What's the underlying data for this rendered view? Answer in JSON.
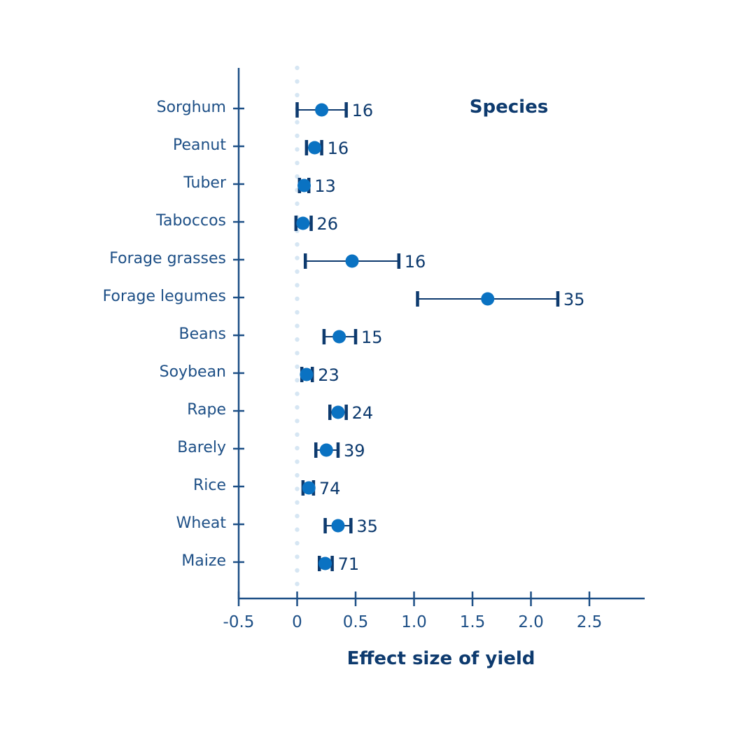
{
  "chart_data": {
    "type": "forest",
    "title": "Species",
    "xlabel": "Effect size of yield",
    "ylabel": "",
    "xlim": [
      -0.5,
      2.97
    ],
    "xticks": [
      -0.5,
      0,
      0.5,
      1.0,
      1.5,
      2.0,
      2.5
    ],
    "xtick_labels": [
      "-0.5",
      "0",
      "0.5",
      "1.0",
      "1.5",
      "2.0",
      "2.5"
    ],
    "reference_line": 0,
    "grid": false,
    "colors": {
      "point": "#0a72c2",
      "whisker": "#0d3a6e",
      "axis": "#1d4f86",
      "reference": "#d6e6f3"
    },
    "rows": [
      {
        "label": "Sorghum",
        "mean": 0.21,
        "low": 0.0,
        "high": 0.42,
        "n": "16"
      },
      {
        "label": "Peanut",
        "mean": 0.15,
        "low": 0.08,
        "high": 0.21,
        "n": "16"
      },
      {
        "label": "Tuber",
        "mean": 0.06,
        "low": 0.02,
        "high": 0.1,
        "n": "13"
      },
      {
        "label": "Taboccos",
        "mean": 0.05,
        "low": -0.01,
        "high": 0.12,
        "n": "26"
      },
      {
        "label": "Forage grasses",
        "mean": 0.47,
        "low": 0.07,
        "high": 0.87,
        "n": "16"
      },
      {
        "label": "Forage legumes",
        "mean": 1.63,
        "low": 1.03,
        "high": 2.23,
        "n": "35"
      },
      {
        "label": "Beans",
        "mean": 0.36,
        "low": 0.23,
        "high": 0.5,
        "n": "15"
      },
      {
        "label": "Soybean",
        "mean": 0.08,
        "low": 0.04,
        "high": 0.13,
        "n": "23"
      },
      {
        "label": "Rape",
        "mean": 0.35,
        "low": 0.28,
        "high": 0.42,
        "n": "24"
      },
      {
        "label": "Barely",
        "mean": 0.25,
        "low": 0.16,
        "high": 0.35,
        "n": "39"
      },
      {
        "label": "Rice",
        "mean": 0.1,
        "low": 0.05,
        "high": 0.14,
        "n": "74"
      },
      {
        "label": "Wheat",
        "mean": 0.35,
        "low": 0.24,
        "high": 0.46,
        "n": "35"
      },
      {
        "label": "Maize",
        "mean": 0.24,
        "low": 0.19,
        "high": 0.3,
        "n": "71"
      }
    ]
  }
}
